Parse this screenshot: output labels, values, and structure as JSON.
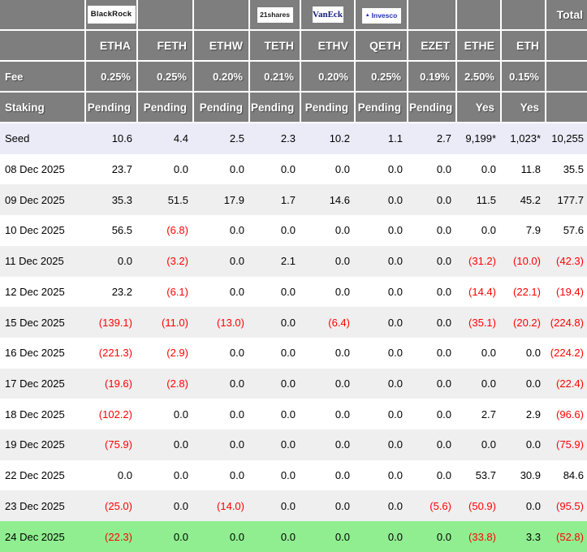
{
  "colors": {
    "header_bg": "#7e7e7e",
    "header_text": "#ffffff",
    "row_white_bg": "#ffffff",
    "row_alt_bg": "#efefef",
    "seed_row_bg": "#eaebf7",
    "highlight_row_bg": "#90ee90",
    "negative_text": "#ff0000",
    "text": "#000000",
    "grid_border": "#ffffff",
    "vaneck_blue": "#16217c",
    "invesco_blue": "#2230b4"
  },
  "icons": {
    "invesco_mark": "▲"
  },
  "table": {
    "total_label": "Total",
    "tickers": [
      "ETHA",
      "FETH",
      "ETHW",
      "TETH",
      "ETHV",
      "QETH",
      "EZET",
      "ETHE",
      "ETH"
    ],
    "logos": {
      "ETHA": "BlackRock",
      "TETH": "21shares",
      "ETHV": "VanEck",
      "QETH": "Invesco"
    },
    "fee_label": "Fee",
    "fees": [
      "0.25%",
      "0.25%",
      "0.20%",
      "0.21%",
      "0.20%",
      "0.25%",
      "0.19%",
      "2.50%",
      "0.15%"
    ],
    "staking_label": "Staking",
    "staking": [
      "Pending",
      "Pending",
      "Pending",
      "Pending",
      "Pending",
      "Pending",
      "Pending",
      "Yes",
      "Yes"
    ],
    "seed_label": "Seed",
    "seed_values": [
      "10.6",
      "4.4",
      "2.5",
      "2.3",
      "10.2",
      "1.1",
      "2.7",
      "9,199*",
      "1,023*"
    ],
    "seed_total": "10,255",
    "rows": [
      {
        "date": "08 Dec 2025",
        "values": [
          "23.7",
          "0.0",
          "0.0",
          "0.0",
          "0.0",
          "0.0",
          "0.0",
          "0.0",
          "11.8"
        ],
        "total": "35.5"
      },
      {
        "date": "09 Dec 2025",
        "values": [
          "35.3",
          "51.5",
          "17.9",
          "1.7",
          "14.6",
          "0.0",
          "0.0",
          "11.5",
          "45.2"
        ],
        "total": "177.7"
      },
      {
        "date": "10 Dec 2025",
        "values": [
          "56.5",
          "(6.8)",
          "0.0",
          "0.0",
          "0.0",
          "0.0",
          "0.0",
          "0.0",
          "7.9"
        ],
        "total": "57.6"
      },
      {
        "date": "11 Dec 2025",
        "values": [
          "0.0",
          "(3.2)",
          "0.0",
          "2.1",
          "0.0",
          "0.0",
          "0.0",
          "(31.2)",
          "(10.0)"
        ],
        "total": "(42.3)"
      },
      {
        "date": "12 Dec 2025",
        "values": [
          "23.2",
          "(6.1)",
          "0.0",
          "0.0",
          "0.0",
          "0.0",
          "0.0",
          "(14.4)",
          "(22.1)"
        ],
        "total": "(19.4)"
      },
      {
        "date": "15 Dec 2025",
        "values": [
          "(139.1)",
          "(11.0)",
          "(13.0)",
          "0.0",
          "(6.4)",
          "0.0",
          "0.0",
          "(35.1)",
          "(20.2)"
        ],
        "total": "(224.8)"
      },
      {
        "date": "16 Dec 2025",
        "values": [
          "(221.3)",
          "(2.9)",
          "0.0",
          "0.0",
          "0.0",
          "0.0",
          "0.0",
          "0.0",
          "0.0"
        ],
        "total": "(224.2)"
      },
      {
        "date": "17 Dec 2025",
        "values": [
          "(19.6)",
          "(2.8)",
          "0.0",
          "0.0",
          "0.0",
          "0.0",
          "0.0",
          "0.0",
          "0.0"
        ],
        "total": "(22.4)"
      },
      {
        "date": "18 Dec 2025",
        "values": [
          "(102.2)",
          "0.0",
          "0.0",
          "0.0",
          "0.0",
          "0.0",
          "0.0",
          "2.7",
          "2.9"
        ],
        "total": "(96.6)"
      },
      {
        "date": "19 Dec 2025",
        "values": [
          "(75.9)",
          "0.0",
          "0.0",
          "0.0",
          "0.0",
          "0.0",
          "0.0",
          "0.0",
          "0.0"
        ],
        "total": "(75.9)"
      },
      {
        "date": "22 Dec 2025",
        "values": [
          "0.0",
          "0.0",
          "0.0",
          "0.0",
          "0.0",
          "0.0",
          "0.0",
          "53.7",
          "30.9"
        ],
        "total": "84.6"
      },
      {
        "date": "23 Dec 2025",
        "values": [
          "(25.0)",
          "0.0",
          "(14.0)",
          "0.0",
          "0.0",
          "0.0",
          "(5.6)",
          "(50.9)",
          "0.0"
        ],
        "total": "(95.5)"
      },
      {
        "date": "24 Dec 2025",
        "values": [
          "(22.3)",
          "0.0",
          "0.0",
          "0.0",
          "0.0",
          "0.0",
          "0.0",
          "(33.8)",
          "3.3"
        ],
        "total": "(52.8)",
        "highlight": true
      }
    ]
  },
  "chart_data": {
    "type": "table",
    "title": "Ethereum ETF daily flow table",
    "columns": [
      "ETHA",
      "FETH",
      "ETHW",
      "TETH",
      "ETHV",
      "QETH",
      "EZET",
      "ETHE",
      "ETH",
      "Total"
    ],
    "issuer_logos_shown": {
      "ETHA": "BlackRock",
      "TETH": "21shares",
      "ETHV": "VanEck",
      "QETH": "Invesco"
    },
    "fee_percent": [
      0.25,
      0.25,
      0.2,
      0.21,
      0.2,
      0.25,
      0.19,
      2.5,
      0.15
    ],
    "staking": [
      "Pending",
      "Pending",
      "Pending",
      "Pending",
      "Pending",
      "Pending",
      "Pending",
      "Yes",
      "Yes"
    ],
    "rows": [
      {
        "label": "Seed",
        "values": [
          10.6,
          4.4,
          2.5,
          2.3,
          10.2,
          1.1,
          2.7,
          9199,
          1023
        ],
        "total": 10255,
        "note": "ETHE and ETH seed values carry * footnote markers"
      },
      {
        "label": "08 Dec 2025",
        "values": [
          23.7,
          0,
          0,
          0,
          0,
          0,
          0,
          0,
          11.8
        ],
        "total": 35.5
      },
      {
        "label": "09 Dec 2025",
        "values": [
          35.3,
          51.5,
          17.9,
          1.7,
          14.6,
          0,
          0,
          11.5,
          45.2
        ],
        "total": 177.7
      },
      {
        "label": "10 Dec 2025",
        "values": [
          56.5,
          -6.8,
          0,
          0,
          0,
          0,
          0,
          0,
          7.9
        ],
        "total": 57.6
      },
      {
        "label": "11 Dec 2025",
        "values": [
          0,
          -3.2,
          0,
          2.1,
          0,
          0,
          0,
          -31.2,
          -10.0
        ],
        "total": -42.3
      },
      {
        "label": "12 Dec 2025",
        "values": [
          23.2,
          -6.1,
          0,
          0,
          0,
          0,
          0,
          -14.4,
          -22.1
        ],
        "total": -19.4
      },
      {
        "label": "15 Dec 2025",
        "values": [
          -139.1,
          -11.0,
          -13.0,
          0,
          -6.4,
          0,
          0,
          -35.1,
          -20.2
        ],
        "total": -224.8
      },
      {
        "label": "16 Dec 2025",
        "values": [
          -221.3,
          -2.9,
          0,
          0,
          0,
          0,
          0,
          0,
          0
        ],
        "total": -224.2
      },
      {
        "label": "17 Dec 2025",
        "values": [
          -19.6,
          -2.8,
          0,
          0,
          0,
          0,
          0,
          0,
          0
        ],
        "total": -22.4
      },
      {
        "label": "18 Dec 2025",
        "values": [
          -102.2,
          0,
          0,
          0,
          0,
          0,
          0,
          2.7,
          2.9
        ],
        "total": -96.6
      },
      {
        "label": "19 Dec 2025",
        "values": [
          -75.9,
          0,
          0,
          0,
          0,
          0,
          0,
          0,
          0
        ],
        "total": -75.9
      },
      {
        "label": "22 Dec 2025",
        "values": [
          0,
          0,
          0,
          0,
          0,
          0,
          0,
          53.7,
          30.9
        ],
        "total": 84.6
      },
      {
        "label": "23 Dec 2025",
        "values": [
          -25.0,
          0,
          -14.0,
          0,
          0,
          0,
          -5.6,
          -50.9,
          0
        ],
        "total": -95.5
      },
      {
        "label": "24 Dec 2025",
        "values": [
          -22.3,
          0,
          0,
          0,
          0,
          0,
          0,
          -33.8,
          3.3
        ],
        "total": -52.8
      }
    ],
    "negative_format": "parentheses, red",
    "highlighted_row": "24 Dec 2025"
  }
}
